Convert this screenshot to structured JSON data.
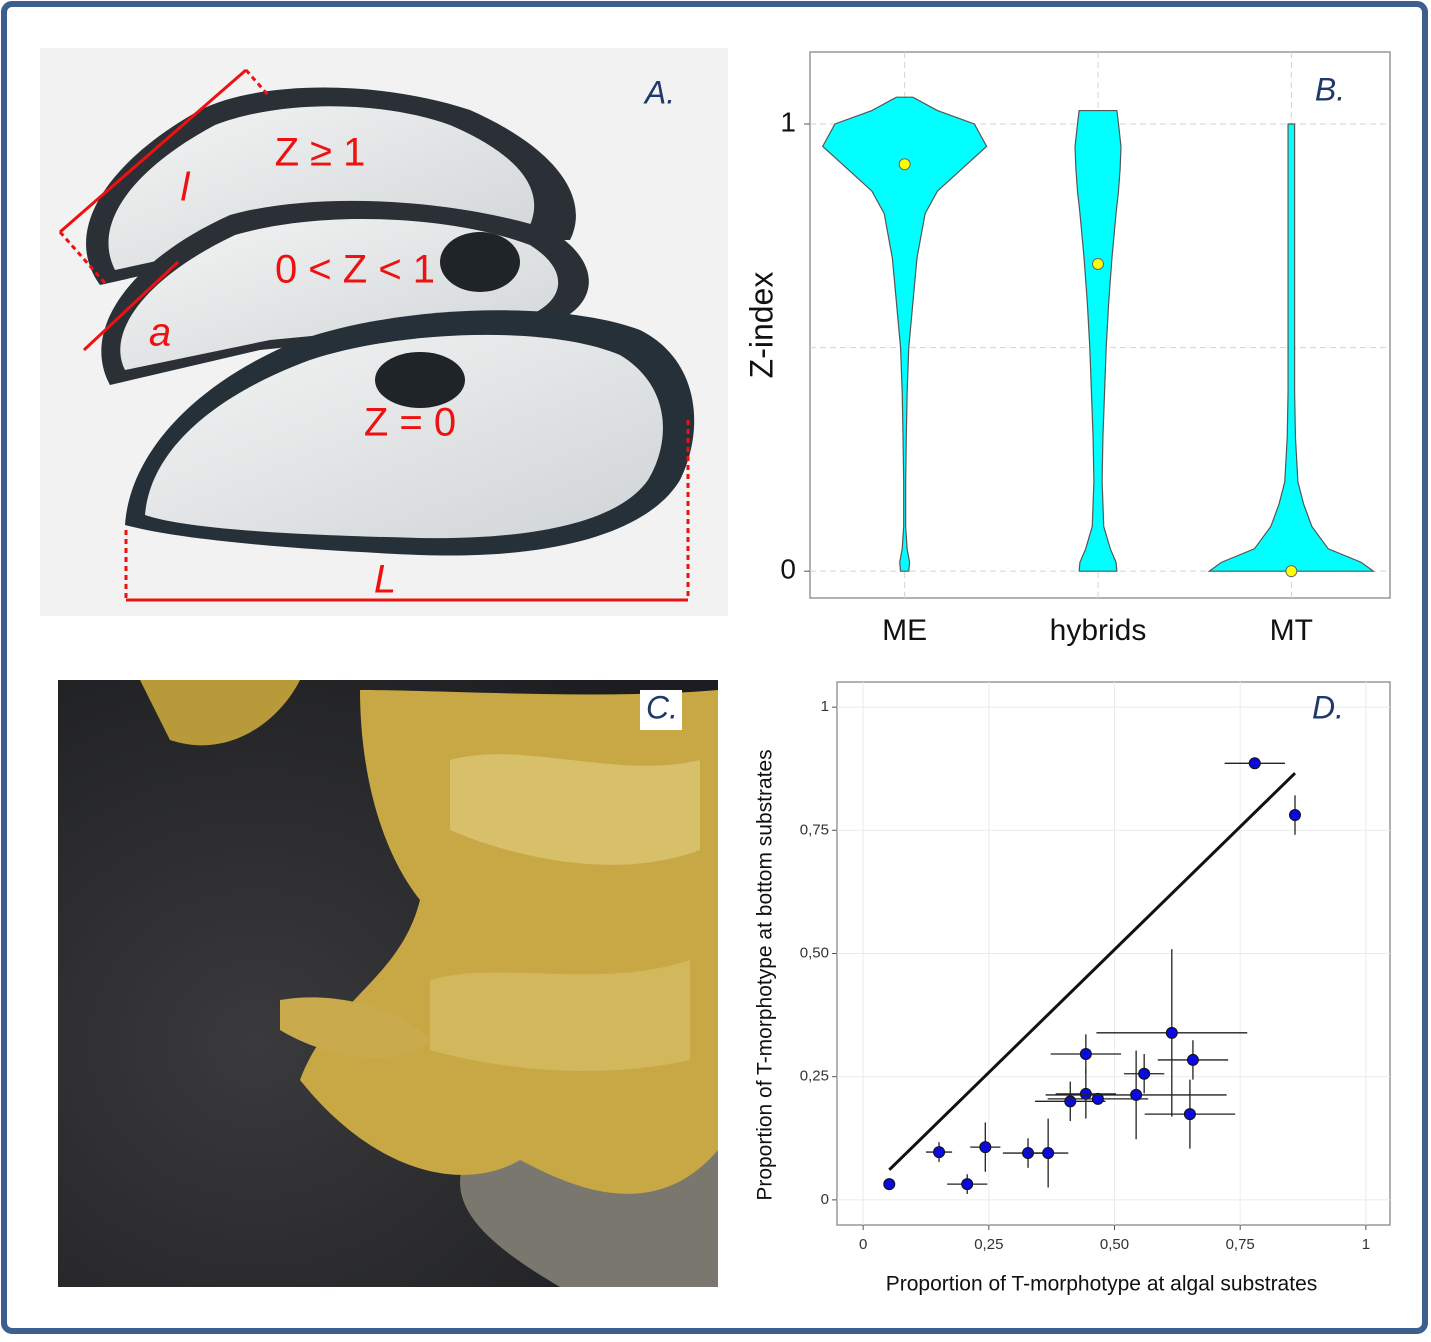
{
  "photos": [
    {
      "label": "A.",
      "annotations": [
        "l",
        "Z ≥ 1",
        "a",
        "0 < Z < 1",
        "Z = 0",
        "L"
      ]
    },
    {
      "label": "C."
    }
  ],
  "chart_data": [
    {
      "type": "violin",
      "label": "B.",
      "ylabel": "Z-index",
      "categories": [
        "ME",
        "hybrids",
        "MT"
      ],
      "means": [
        0.91,
        0.687,
        0
      ],
      "density": [
        {
          "y": [
            0,
            0.02,
            0.05,
            0.1,
            0.2,
            0.3,
            0.4,
            0.5,
            0.6,
            0.7,
            0.8,
            0.85,
            0.9,
            0.95,
            1.0,
            1.03,
            1.06
          ],
          "width": [
            0.05,
            0.06,
            0.03,
            0.012,
            0.012,
            0.02,
            0.03,
            0.05,
            0.1,
            0.15,
            0.25,
            0.4,
            0.7,
            1.0,
            0.85,
            0.4,
            0.1
          ]
        },
        {
          "y": [
            0,
            0.02,
            0.05,
            0.1,
            0.2,
            0.3,
            0.4,
            0.5,
            0.6,
            0.7,
            0.8,
            0.85,
            0.9,
            0.95,
            1.0,
            1.03
          ],
          "width": [
            0.23,
            0.22,
            0.15,
            0.07,
            0.05,
            0.06,
            0.08,
            0.1,
            0.13,
            0.17,
            0.22,
            0.25,
            0.27,
            0.28,
            0.25,
            0.23
          ]
        },
        {
          "y": [
            0,
            0.02,
            0.05,
            0.1,
            0.15,
            0.2,
            0.3,
            0.4,
            0.5,
            0.6,
            0.7,
            0.8,
            0.9,
            1.0
          ],
          "width": [
            1.0,
            0.85,
            0.45,
            0.25,
            0.15,
            0.08,
            0.05,
            0.04,
            0.04,
            0.04,
            0.04,
            0.04,
            0.04,
            0.04
          ]
        }
      ],
      "color": "#00ffff",
      "mean_color": "#ffff00",
      "ylim": [
        -0.06,
        1.161
      ],
      "yticks": [
        0,
        1
      ],
      "ygrid": [
        0,
        0.5,
        1
      ],
      "grid": true
    },
    {
      "type": "scatter",
      "label": "D.",
      "xlabel": "Proportion of T-morphotype at algal substrates",
      "ylabel": "Proportion of T-morphotype at bottom substrates",
      "x": [
        0.052,
        0.151,
        0.207,
        0.243,
        0.328,
        0.368,
        0.412,
        0.443,
        0.467,
        0.443,
        0.543,
        0.559,
        0.614,
        0.656,
        0.65,
        0.779,
        0.859
      ],
      "y": [
        0.032,
        0.097,
        0.032,
        0.107,
        0.095,
        0.095,
        0.2,
        0.215,
        0.205,
        0.296,
        0.213,
        0.256,
        0.339,
        0.284,
        0.174,
        0.886,
        0.781
      ],
      "xerr": [
        0,
        0.026,
        0.04,
        0.03,
        0.05,
        0.04,
        0.07,
        0.06,
        0.1,
        0.07,
        0.18,
        0.04,
        0.15,
        0.07,
        0.09,
        0.06,
        0.01
      ],
      "yerr": [
        0,
        0.02,
        0.02,
        0.05,
        0.03,
        0.07,
        0.04,
        0.05,
        0,
        0.04,
        0.09,
        0.04,
        0.17,
        0.04,
        0.07,
        0,
        0.04
      ],
      "line": {
        "x": [
          0.052,
          0.859
        ],
        "y": [
          0.061,
          0.866
        ]
      },
      "color": "#0a0adc",
      "xlim": [
        -0.052,
        1.048
      ],
      "ylim": [
        -0.051,
        1.051
      ],
      "xticks": [
        0,
        {
          "value": 0.25,
          "label": "0,25"
        },
        {
          "value": 0.5,
          "label": "0,50"
        },
        {
          "value": 0.75,
          "label": "0,75"
        },
        1
      ],
      "yticks": [
        0,
        {
          "value": 0.25,
          "label": "0,25"
        },
        {
          "value": 0.5,
          "label": "0,50"
        },
        {
          "value": 0.75,
          "label": "0,75"
        },
        1
      ],
      "grid": true
    }
  ]
}
